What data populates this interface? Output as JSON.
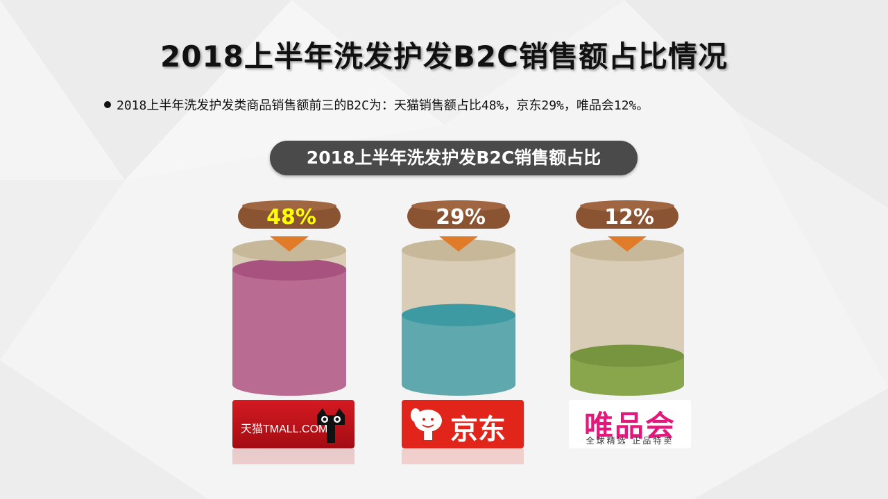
{
  "title": "2018上半年洗发护发B2C销售额占比情况",
  "bullet": "2018上半年洗发护发类商品销售额前三的B2C为：天猫销售额占比48%，京东29%，唯品会12%。",
  "chart_data": {
    "type": "bar",
    "title": "2018上半年洗发护发B2C销售额占比",
    "categories": [
      "天猫",
      "京东",
      "唯品会"
    ],
    "values": [
      48,
      29,
      12
    ],
    "labels": [
      "48%",
      "29%",
      "12%"
    ],
    "colors": [
      "#b96b92",
      "#5fa8ad",
      "#8aa64c"
    ],
    "top_colors": [
      "#a8537f",
      "#3d9aa2",
      "#76953e"
    ],
    "label_colors": [
      "#ffff00",
      "#ffffff",
      "#ffffff"
    ]
  },
  "logos": {
    "tmall": "天猫TMALL.COM",
    "jd": "京东",
    "vip": "唯品会",
    "vip_sub": "全球精选  正品特卖"
  },
  "icons": [
    "tmall-cat-icon",
    "jd-dog-icon"
  ]
}
